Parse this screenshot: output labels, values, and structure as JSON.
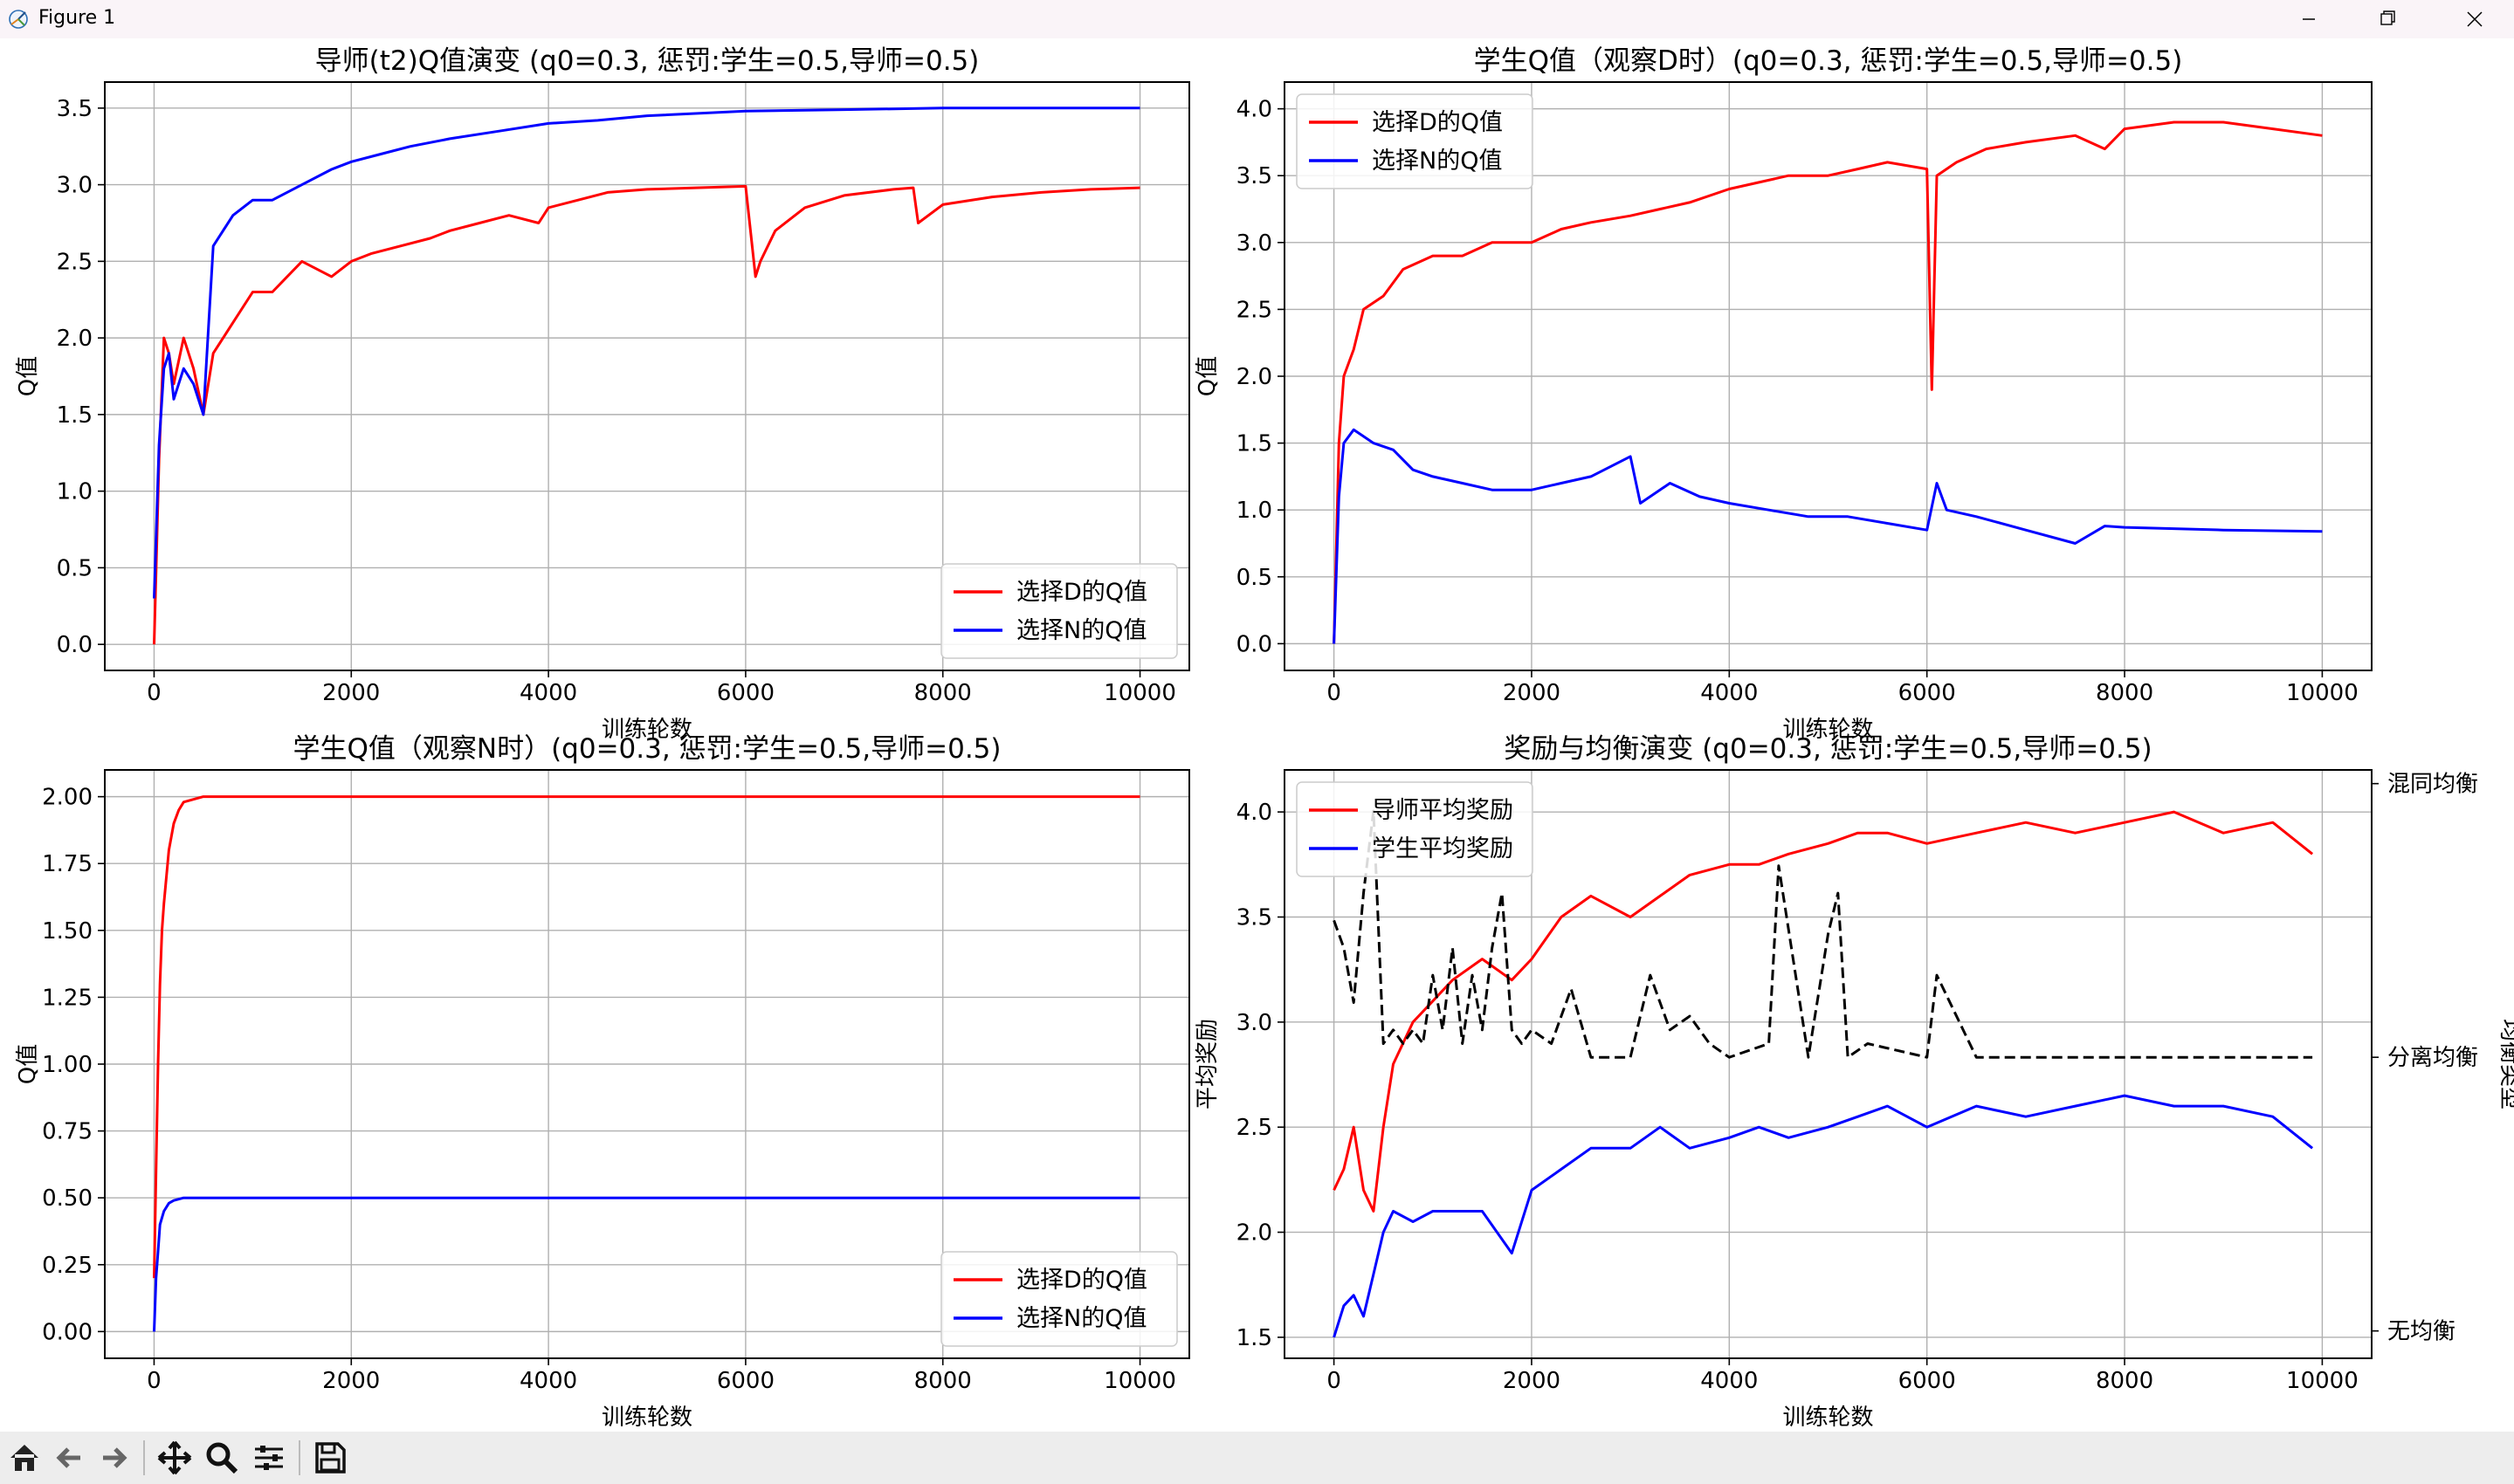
{
  "window": {
    "title": "Figure 1"
  },
  "toolbar": [
    {
      "name": "home-icon"
    },
    {
      "name": "back-arrow-icon"
    },
    {
      "name": "forward-arrow-icon"
    },
    {
      "name": "pan-icon"
    },
    {
      "name": "zoom-icon"
    },
    {
      "name": "subplots-config-icon"
    },
    {
      "name": "save-icon"
    }
  ],
  "colors": {
    "red": "#ff0000",
    "blue": "#0000ff",
    "black": "#000000",
    "grid": "#b0b0b0"
  },
  "chart_data": [
    {
      "type": "line",
      "title": "导师(t2)Q值演变 (q0=0.3, 惩罚:学生=0.5,导师=0.5)",
      "xlabel": "训练轮数",
      "ylabel": "Q值",
      "xlim": [
        -500,
        10500
      ],
      "ylim": [
        -0.17,
        3.67
      ],
      "xticks": [
        0,
        2000,
        4000,
        6000,
        8000,
        10000
      ],
      "yticks": [
        0.0,
        0.5,
        1.0,
        1.5,
        2.0,
        2.5,
        3.0,
        3.5
      ],
      "ytick_labels": [
        "0.0",
        "0.5",
        "1.0",
        "1.5",
        "2.0",
        "2.5",
        "3.0",
        "3.5"
      ],
      "legend": "lower right",
      "grid": true,
      "series": [
        {
          "name": "选择D的Q值",
          "color": "#ff0000",
          "x": [
            0,
            50,
            100,
            150,
            200,
            300,
            400,
            500,
            600,
            800,
            1000,
            1200,
            1500,
            1800,
            2000,
            2200,
            2500,
            2800,
            3000,
            3300,
            3600,
            3900,
            4000,
            4300,
            4600,
            5000,
            5500,
            6000,
            6100,
            6150,
            6300,
            6600,
            7000,
            7500,
            7700,
            7750,
            8000,
            8500,
            9000,
            9500,
            10000
          ],
          "y": [
            0.0,
            1.2,
            2.0,
            1.9,
            1.7,
            2.0,
            1.8,
            1.5,
            1.9,
            2.1,
            2.3,
            2.3,
            2.5,
            2.4,
            2.5,
            2.55,
            2.6,
            2.65,
            2.7,
            2.75,
            2.8,
            2.75,
            2.85,
            2.9,
            2.95,
            2.97,
            2.98,
            2.99,
            2.4,
            2.5,
            2.7,
            2.85,
            2.93,
            2.97,
            2.98,
            2.75,
            2.87,
            2.92,
            2.95,
            2.97,
            2.98
          ]
        },
        {
          "name": "选择N的Q值",
          "color": "#0000ff",
          "x": [
            0,
            50,
            100,
            150,
            200,
            300,
            400,
            500,
            600,
            800,
            1000,
            1200,
            1500,
            1800,
            2000,
            2300,
            2600,
            3000,
            3500,
            4000,
            4500,
            5000,
            6000,
            7000,
            8000,
            9000,
            10000
          ],
          "y": [
            0.3,
            1.3,
            1.8,
            1.9,
            1.6,
            1.8,
            1.7,
            1.5,
            2.6,
            2.8,
            2.9,
            2.9,
            3.0,
            3.1,
            3.15,
            3.2,
            3.25,
            3.3,
            3.35,
            3.4,
            3.42,
            3.45,
            3.48,
            3.49,
            3.5,
            3.5,
            3.5
          ]
        }
      ]
    },
    {
      "type": "line",
      "title": "学生Q值（观察D时）(q0=0.3, 惩罚:学生=0.5,导师=0.5)",
      "xlabel": "训练轮数",
      "ylabel": "Q值",
      "xlim": [
        -500,
        10500
      ],
      "ylim": [
        -0.2,
        4.2
      ],
      "xticks": [
        0,
        2000,
        4000,
        6000,
        8000,
        10000
      ],
      "yticks": [
        0.0,
        0.5,
        1.0,
        1.5,
        2.0,
        2.5,
        3.0,
        3.5,
        4.0
      ],
      "ytick_labels": [
        "0.0",
        "0.5",
        "1.0",
        "1.5",
        "2.0",
        "2.5",
        "3.0",
        "3.5",
        "4.0"
      ],
      "legend": "upper left",
      "grid": true,
      "series": [
        {
          "name": "选择D的Q值",
          "color": "#ff0000",
          "x": [
            0,
            50,
            100,
            200,
            300,
            500,
            700,
            1000,
            1300,
            1600,
            2000,
            2300,
            2600,
            3000,
            3300,
            3600,
            4000,
            4300,
            4600,
            5000,
            5300,
            5600,
            6000,
            6050,
            6100,
            6300,
            6600,
            7000,
            7500,
            7800,
            8000,
            8500,
            9000,
            9500,
            10000
          ],
          "y": [
            0.0,
            1.5,
            2.0,
            2.2,
            2.5,
            2.6,
            2.8,
            2.9,
            2.9,
            3.0,
            3.0,
            3.1,
            3.15,
            3.2,
            3.25,
            3.3,
            3.4,
            3.45,
            3.5,
            3.5,
            3.55,
            3.6,
            3.55,
            1.9,
            3.5,
            3.6,
            3.7,
            3.75,
            3.8,
            3.7,
            3.85,
            3.9,
            3.9,
            3.85,
            3.8
          ]
        },
        {
          "name": "选择N的Q值",
          "color": "#0000ff",
          "x": [
            0,
            50,
            100,
            200,
            300,
            400,
            600,
            800,
            1000,
            1300,
            1600,
            2000,
            2300,
            2600,
            3000,
            3100,
            3400,
            3700,
            4000,
            4400,
            4800,
            5200,
            5600,
            6000,
            6100,
            6200,
            6500,
            7000,
            7500,
            7800,
            8000,
            9000,
            10000
          ],
          "y": [
            0.0,
            1.1,
            1.5,
            1.6,
            1.55,
            1.5,
            1.45,
            1.3,
            1.25,
            1.2,
            1.15,
            1.15,
            1.2,
            1.25,
            1.4,
            1.05,
            1.2,
            1.1,
            1.05,
            1.0,
            0.95,
            0.95,
            0.9,
            0.85,
            1.2,
            1.0,
            0.95,
            0.85,
            0.75,
            0.88,
            0.87,
            0.85,
            0.84
          ]
        }
      ]
    },
    {
      "type": "line",
      "title": "学生Q值（观察N时）(q0=0.3, 惩罚:学生=0.5,导师=0.5)",
      "xlabel": "训练轮数",
      "ylabel": "Q值",
      "xlim": [
        -500,
        10500
      ],
      "ylim": [
        -0.1,
        2.1
      ],
      "xticks": [
        0,
        2000,
        4000,
        6000,
        8000,
        10000
      ],
      "yticks": [
        0.0,
        0.25,
        0.5,
        0.75,
        1.0,
        1.25,
        1.5,
        1.75,
        2.0
      ],
      "ytick_labels": [
        "0.00",
        "0.25",
        "0.50",
        "0.75",
        "1.00",
        "1.25",
        "1.50",
        "1.75",
        "2.00"
      ],
      "legend": "lower right",
      "grid": true,
      "series": [
        {
          "name": "选择D的Q值",
          "color": "#ff0000",
          "x": [
            0,
            20,
            40,
            60,
            80,
            100,
            150,
            200,
            250,
            300,
            400,
            500,
            1000,
            2000,
            4000,
            6000,
            8000,
            10000
          ],
          "y": [
            0.2,
            0.6,
            1.0,
            1.3,
            1.5,
            1.6,
            1.8,
            1.9,
            1.95,
            1.98,
            1.99,
            2.0,
            2.0,
            2.0,
            2.0,
            2.0,
            2.0,
            2.0
          ]
        },
        {
          "name": "选择N的Q值",
          "color": "#0000ff",
          "x": [
            0,
            20,
            40,
            60,
            100,
            150,
            200,
            300,
            500,
            1000,
            2000,
            4000,
            6000,
            8000,
            10000
          ],
          "y": [
            0.0,
            0.2,
            0.3,
            0.4,
            0.45,
            0.48,
            0.49,
            0.5,
            0.5,
            0.5,
            0.5,
            0.5,
            0.5,
            0.5,
            0.5
          ]
        }
      ]
    },
    {
      "type": "line",
      "title": "奖励与均衡演变 (q0=0.3, 惩罚:学生=0.5,导师=0.5)",
      "xlabel": "训练轮数",
      "ylabel": "平均奖励",
      "y2label": "均衡类型",
      "xlim": [
        -500,
        10500
      ],
      "ylim": [
        1.4,
        4.2
      ],
      "xticks": [
        0,
        2000,
        4000,
        6000,
        8000,
        10000
      ],
      "yticks": [
        1.5,
        2.0,
        2.5,
        3.0,
        3.5,
        4.0
      ],
      "ytick_labels": [
        "1.5",
        "2.0",
        "2.5",
        "3.0",
        "3.5",
        "4.0"
      ],
      "y2lim": [
        -0.1,
        2.05
      ],
      "y2ticks": [
        0,
        1,
        2
      ],
      "y2tick_labels": [
        "无均衡",
        "分离均衡",
        "混同均衡"
      ],
      "legend": "upper left",
      "grid": true,
      "series": [
        {
          "name": "导师平均奖励",
          "color": "#ff0000",
          "x": [
            0,
            100,
            200,
            300,
            400,
            500,
            600,
            800,
            1000,
            1200,
            1500,
            1800,
            2000,
            2300,
            2600,
            3000,
            3300,
            3600,
            4000,
            4300,
            4600,
            5000,
            5300,
            5600,
            6000,
            6500,
            7000,
            7500,
            8000,
            8500,
            9000,
            9500,
            9900
          ],
          "y": [
            2.2,
            2.3,
            2.5,
            2.2,
            2.1,
            2.5,
            2.8,
            3.0,
            3.1,
            3.2,
            3.3,
            3.2,
            3.3,
            3.5,
            3.6,
            3.5,
            3.6,
            3.7,
            3.75,
            3.75,
            3.8,
            3.85,
            3.9,
            3.9,
            3.85,
            3.9,
            3.95,
            3.9,
            3.95,
            4.0,
            3.9,
            3.95,
            3.8
          ]
        },
        {
          "name": "学生平均奖励",
          "color": "#0000ff",
          "x": [
            0,
            100,
            200,
            300,
            400,
            500,
            600,
            800,
            1000,
            1200,
            1500,
            1800,
            2000,
            2300,
            2600,
            3000,
            3300,
            3600,
            4000,
            4300,
            4600,
            5000,
            5300,
            5600,
            6000,
            6500,
            7000,
            7500,
            8000,
            8500,
            9000,
            9500,
            9900
          ],
          "y": [
            1.5,
            1.65,
            1.7,
            1.6,
            1.8,
            2.0,
            2.1,
            2.05,
            2.1,
            2.1,
            2.1,
            1.9,
            2.2,
            2.3,
            2.4,
            2.4,
            2.5,
            2.4,
            2.45,
            2.5,
            2.45,
            2.5,
            2.55,
            2.6,
            2.5,
            2.6,
            2.55,
            2.6,
            2.65,
            2.6,
            2.6,
            2.55,
            2.4
          ]
        },
        {
          "name": "",
          "color": "#000000",
          "dash": true,
          "axis": "y2",
          "x": [
            0,
            100,
            200,
            300,
            400,
            500,
            600,
            700,
            800,
            900,
            1000,
            1100,
            1200,
            1300,
            1400,
            1500,
            1600,
            1700,
            1800,
            1900,
            2000,
            2200,
            2400,
            2600,
            3000,
            3200,
            3400,
            3600,
            3800,
            4000,
            4400,
            4500,
            4800,
            5000,
            5100,
            5200,
            5400,
            6000,
            6100,
            6500,
            7000,
            8000,
            9000,
            9900
          ],
          "y": [
            1.5,
            1.4,
            1.2,
            1.6,
            1.9,
            1.05,
            1.1,
            1.05,
            1.1,
            1.05,
            1.3,
            1.1,
            1.4,
            1.05,
            1.3,
            1.1,
            1.4,
            1.6,
            1.1,
            1.05,
            1.1,
            1.05,
            1.25,
            1.0,
            1.0,
            1.3,
            1.1,
            1.15,
            1.05,
            1.0,
            1.05,
            1.7,
            1.0,
            1.45,
            1.6,
            1.0,
            1.05,
            1.0,
            1.3,
            1.0,
            1.0,
            1.0,
            1.0,
            1.0
          ]
        }
      ]
    }
  ]
}
